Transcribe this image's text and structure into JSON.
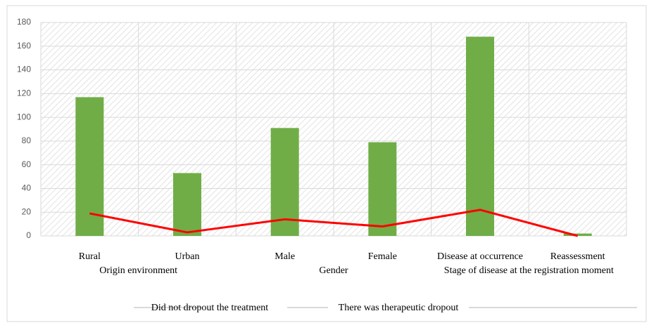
{
  "chart_data": {
    "type": "bar-line",
    "categories": [
      "Rural",
      "Urban",
      "Male",
      "Female",
      "Disease at occurrence",
      "Reassessment"
    ],
    "groups": [
      {
        "label": "Origin environment",
        "size": 2
      },
      {
        "label": "Gender",
        "size": 2
      },
      {
        "label": "Stage of disease at the registration moment",
        "size": 2
      }
    ],
    "series": [
      {
        "name": "Did not dropout the treatment",
        "type": "bar",
        "color": "#70ad47",
        "values": [
          117,
          53,
          91,
          79,
          168,
          2
        ]
      },
      {
        "name": "There was therapeutic dropout",
        "type": "line",
        "color": "#ff0000",
        "values": [
          19,
          3,
          14,
          8,
          22,
          0
        ]
      }
    ],
    "ylim": [
      0,
      180
    ],
    "yticks": [
      0,
      20,
      40,
      60,
      80,
      100,
      120,
      140,
      160,
      180
    ],
    "grid": true,
    "legend": "bottom"
  }
}
